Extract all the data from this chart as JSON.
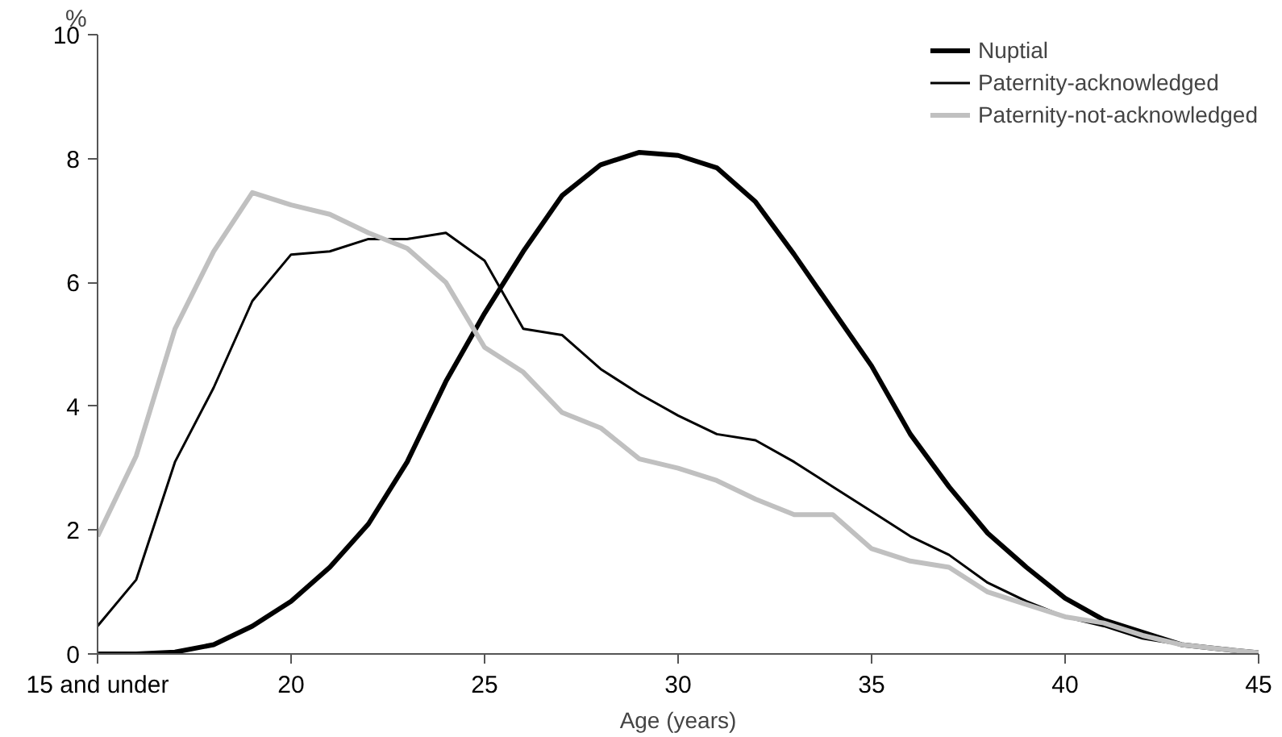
{
  "chart_data": {
    "type": "line",
    "xlabel": "Age (years)",
    "ylabel": "%",
    "x": [
      15,
      16,
      17,
      18,
      19,
      20,
      21,
      22,
      23,
      24,
      25,
      26,
      27,
      28,
      29,
      30,
      31,
      32,
      33,
      34,
      35,
      36,
      37,
      38,
      39,
      40,
      41,
      42,
      43,
      44,
      45
    ],
    "series": [
      {
        "name": "Nuptial",
        "color": "#000000",
        "values": [
          0,
          0,
          0.03,
          0.15,
          0.45,
          0.85,
          1.4,
          2.1,
          3.1,
          4.4,
          5.5,
          6.5,
          7.4,
          7.9,
          8.1,
          8.05,
          7.85,
          7.3,
          6.45,
          5.55,
          4.65,
          3.55,
          2.7,
          1.95,
          1.4,
          0.9,
          0.55,
          0.35,
          0.15,
          0.08,
          0.02
        ]
      },
      {
        "name": "Paternity-acknowledged",
        "color": "#000000",
        "values": [
          0.45,
          1.2,
          3.1,
          4.3,
          5.7,
          6.45,
          6.5,
          6.7,
          6.7,
          6.8,
          6.35,
          5.25,
          5.15,
          4.6,
          4.2,
          3.85,
          3.55,
          3.45,
          3.1,
          2.7,
          2.3,
          1.9,
          1.6,
          1.15,
          0.85,
          0.6,
          0.45,
          0.25,
          0.15,
          0.08,
          0.02
        ]
      },
      {
        "name": "Paternity-not-acknowledged",
        "color": "#c0c0c0",
        "values": [
          1.9,
          3.2,
          5.25,
          6.5,
          7.45,
          7.25,
          7.1,
          6.8,
          6.55,
          6.0,
          4.95,
          4.55,
          3.9,
          3.65,
          3.15,
          3.0,
          2.8,
          2.5,
          2.25,
          2.25,
          1.7,
          1.5,
          1.4,
          1.0,
          0.8,
          0.6,
          0.5,
          0.3,
          0.15,
          0.08,
          0.02
        ]
      }
    ],
    "xlim": [
      15,
      45
    ],
    "ylim": [
      0,
      10
    ],
    "xticks": [
      {
        "value": 15,
        "label": "15 and under"
      },
      20,
      25,
      30,
      35,
      40,
      45
    ],
    "yticks": [
      0,
      2,
      4,
      6,
      8,
      10
    ],
    "grid": false,
    "legend": "top right",
    "marker": "none",
    "line_style": "solid"
  }
}
